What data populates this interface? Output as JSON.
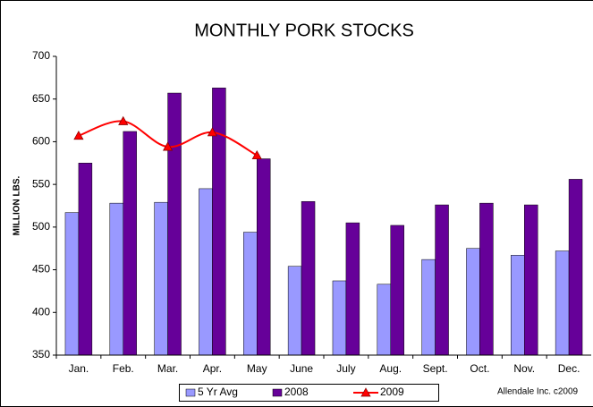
{
  "chart_data": {
    "type": "bar",
    "title": "MONTHLY PORK STOCKS",
    "y_label": "MILLION LBS.",
    "credit": "Allendale Inc. c2009",
    "categories": [
      "Jan.",
      "Feb.",
      "Mar.",
      "Apr.",
      "May",
      "June",
      "July",
      "Aug.",
      "Sept.",
      "Oct.",
      "Nov.",
      "Dec."
    ],
    "series": [
      {
        "name": "5 Yr Avg",
        "color": "#9999ff",
        "type": "bar",
        "values": [
          517,
          528,
          529,
          545,
          494,
          454,
          437,
          433,
          462,
          475,
          467,
          472
        ]
      },
      {
        "name": "2008",
        "color": "#660099",
        "type": "bar",
        "values": [
          575,
          612,
          657,
          663,
          580,
          530,
          505,
          502,
          526,
          528,
          526,
          556
        ]
      },
      {
        "name": "2009",
        "color": "#ff0000",
        "type": "line",
        "values": [
          607,
          624,
          594,
          611,
          584,
          null,
          null,
          null,
          null,
          null,
          null,
          null
        ]
      }
    ],
    "ylim": [
      350,
      700
    ],
    "yticks": [
      350,
      400,
      450,
      500,
      550,
      600,
      650,
      700
    ],
    "grid": false
  }
}
